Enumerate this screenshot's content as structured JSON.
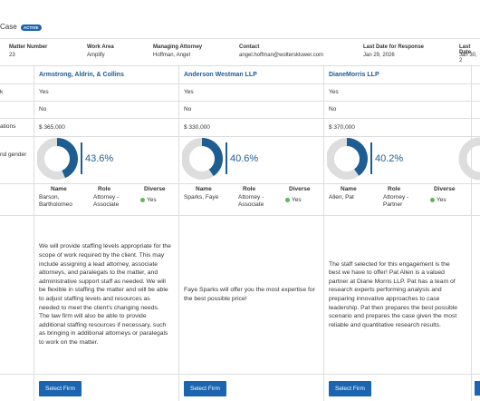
{
  "header": {
    "title": "Case",
    "status": "ACTIVE"
  },
  "details": [
    {
      "label": "Matter Number",
      "value": "23"
    },
    {
      "label": "Work Area",
      "value": "Amplify"
    },
    {
      "label": "Managing Attorney",
      "value": "Hoffman, Angel"
    },
    {
      "label": "Contact",
      "value": "angel.hoffman@wolterskluwer.com"
    },
    {
      "label": "Last Date for Response",
      "value": "Jan 29, 2026"
    },
    {
      "label": "Last Date",
      "value": "Jan 30, 2"
    }
  ],
  "row_labels": [
    "k",
    "ations",
    "nd gender"
  ],
  "people_columns": [
    "Name",
    "Role",
    "Diverse"
  ],
  "firms": [
    {
      "name": "Armstrong, Aldrin, & Collins",
      "answer_1": "Yes",
      "answer_2": "No",
      "budget": "$ 365,000",
      "diversity": {
        "value": 43.6,
        "label": "43.6%"
      },
      "person": {
        "name": "Barson, Bartholomeo",
        "role": "Attorney - Associate",
        "diverse": "Yes"
      },
      "description": "We will provide staffing levels appropriate for the scope of work required by the client. This may include assigning a lead attorney, associate attorneys, and paralegals to the matter, and administrative support staff as needed. We will be flexible in staffing the matter and will be able to adjust staffing levels and resources as needed to meet the client's changing needs. The law firm will also be able to provide additional staffing resources if necessary, such as bringing in additional attorneys or paralegals to work on the matter.",
      "button": "Select Firm"
    },
    {
      "name": "Anderson Westman LLP",
      "answer_1": "Yes",
      "answer_2": "No",
      "budget": "$ 330,000",
      "diversity": {
        "value": 40.6,
        "label": "40.6%"
      },
      "person": {
        "name": "Sparks, Faye",
        "role": "Attorney - Associate",
        "diverse": "Yes"
      },
      "description": "Faye Sparks will offer you the most expertise for the best possible price!",
      "button": "Select Firm"
    },
    {
      "name": "DianeMorris LLP",
      "answer_1": "Yes",
      "answer_2": "No",
      "budget": "$ 370,000",
      "diversity": {
        "value": 40.2,
        "label": "40.2%"
      },
      "person": {
        "name": "Allen, Pat",
        "role": "Attorney - Partner",
        "diverse": "Yes"
      },
      "description": "The staff selected for this engagement is the best we have to offer! Pat Allen is a valued partner at Diane Morris LLP. Pat has a team of research experts performing analysis and preparing innovative approaches to case leadership. Pat then prepares the best possible scenario and prepares the case given the most reliable and quantitative research results.",
      "button": "Select Firm"
    }
  ]
}
